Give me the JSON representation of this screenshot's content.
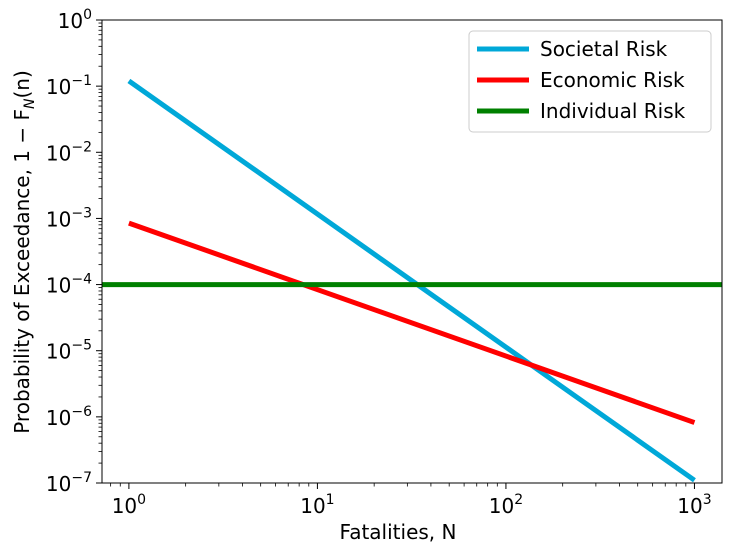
{
  "chart_data": {
    "type": "line",
    "xscale": "log",
    "yscale": "log",
    "xlabel": "Fatalities, N",
    "ylabel": "Probability of Exceedance, 1 − F",
    "ylabel_sub": "N",
    "ylabel_tail": "(n)",
    "xlim": [
      0.72,
      1400
    ],
    "ylim": [
      1e-07,
      1
    ],
    "x_major_ticks": [
      {
        "value": 1,
        "base": "10",
        "exp": "0"
      },
      {
        "value": 10,
        "base": "10",
        "exp": "1"
      },
      {
        "value": 100,
        "base": "10",
        "exp": "2"
      },
      {
        "value": 1000,
        "base": "10",
        "exp": "3"
      }
    ],
    "y_major_ticks": [
      {
        "value": 1,
        "base": "10",
        "exp": "0"
      },
      {
        "value": 0.1,
        "base": "10",
        "exp": "−1"
      },
      {
        "value": 0.01,
        "base": "10",
        "exp": "−2"
      },
      {
        "value": 0.001,
        "base": "10",
        "exp": "−3"
      },
      {
        "value": 0.0001,
        "base": "10",
        "exp": "−4"
      },
      {
        "value": 1e-05,
        "base": "10",
        "exp": "−5"
      },
      {
        "value": 1e-06,
        "base": "10",
        "exp": "−6"
      },
      {
        "value": 1e-07,
        "base": "10",
        "exp": "−7"
      }
    ],
    "grid": false,
    "legend_position": "top-right",
    "series": [
      {
        "name": "Societal Risk",
        "color": "#00a8d8",
        "x": [
          1,
          1000
        ],
        "y": [
          0.12,
          1.1e-07
        ]
      },
      {
        "name": "Economic Risk",
        "color": "#ff0000",
        "x": [
          1,
          1000
        ],
        "y": [
          0.00085,
          8.2e-07
        ]
      },
      {
        "name": "Individual Risk",
        "color": "#008000",
        "x": [
          0.72,
          1400
        ],
        "y": [
          0.0001,
          0.0001
        ]
      }
    ]
  }
}
